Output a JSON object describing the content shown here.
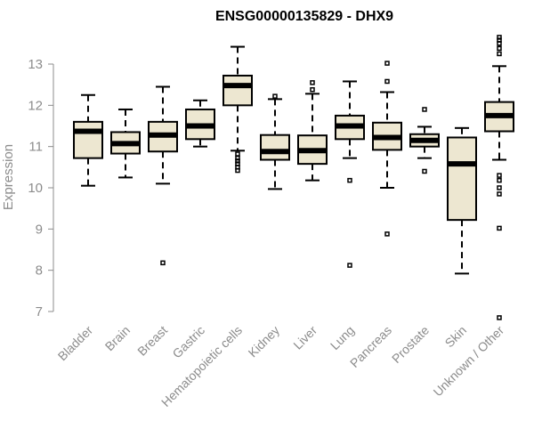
{
  "chart_data": {
    "type": "boxplot",
    "title": "ENSG00000135829 - DHX9",
    "ylabel": "Expression",
    "xlabel": "",
    "ylim": [
      6.8,
      13.7
    ],
    "yticks": [
      7,
      8,
      9,
      10,
      11,
      12,
      13
    ],
    "grid": false,
    "box_fill": "#ede7d1",
    "box_stroke": "#000000",
    "median_color": "#000000",
    "axis_color": "#8c8c8c",
    "categories": [
      {
        "label": "Bladder",
        "whisker_low": 10.05,
        "q1": 10.72,
        "median": 11.37,
        "q3": 11.6,
        "whisker_high": 12.25,
        "outliers": []
      },
      {
        "label": "Brain",
        "whisker_low": 10.25,
        "q1": 10.83,
        "median": 11.07,
        "q3": 11.35,
        "whisker_high": 11.9,
        "outliers": []
      },
      {
        "label": "Breast",
        "whisker_low": 10.1,
        "q1": 10.88,
        "median": 11.28,
        "q3": 11.6,
        "whisker_high": 12.45,
        "outliers": [
          8.18
        ]
      },
      {
        "label": "Gastric",
        "whisker_low": 11.0,
        "q1": 11.18,
        "median": 11.5,
        "q3": 11.9,
        "whisker_high": 12.12,
        "outliers": []
      },
      {
        "label": "Hematopoietic cells",
        "whisker_low": 10.9,
        "q1": 12.0,
        "median": 12.48,
        "q3": 12.72,
        "whisker_high": 13.42,
        "outliers": [
          10.42,
          10.5,
          10.58,
          10.65,
          10.72,
          10.82
        ]
      },
      {
        "label": "Kidney",
        "whisker_low": 9.97,
        "q1": 10.68,
        "median": 10.88,
        "q3": 11.28,
        "whisker_high": 12.15,
        "outliers": [
          12.22
        ]
      },
      {
        "label": "Liver",
        "whisker_low": 10.18,
        "q1": 10.58,
        "median": 10.9,
        "q3": 11.27,
        "whisker_high": 12.28,
        "outliers": [
          12.38,
          12.55
        ]
      },
      {
        "label": "Lung",
        "whisker_low": 10.72,
        "q1": 11.18,
        "median": 11.5,
        "q3": 11.75,
        "whisker_high": 12.58,
        "outliers": [
          10.18,
          8.12
        ]
      },
      {
        "label": "Pancreas",
        "whisker_low": 10.0,
        "q1": 10.92,
        "median": 11.22,
        "q3": 11.58,
        "whisker_high": 12.32,
        "outliers": [
          12.58,
          13.02,
          8.88
        ]
      },
      {
        "label": "Prostate",
        "whisker_low": 10.72,
        "q1": 11.0,
        "median": 11.15,
        "q3": 11.3,
        "whisker_high": 11.48,
        "outliers": [
          11.9,
          10.4
        ]
      },
      {
        "label": "Skin",
        "whisker_low": 7.92,
        "q1": 9.22,
        "median": 10.58,
        "q3": 11.22,
        "whisker_high": 11.45,
        "outliers": []
      },
      {
        "label": "Unknown / Other",
        "whisker_low": 10.68,
        "q1": 11.37,
        "median": 11.75,
        "q3": 12.08,
        "whisker_high": 12.95,
        "outliers": [
          13.25,
          13.38,
          13.5,
          13.58,
          13.65,
          10.3,
          10.18,
          10.0,
          9.85,
          9.02,
          6.85
        ]
      }
    ]
  }
}
